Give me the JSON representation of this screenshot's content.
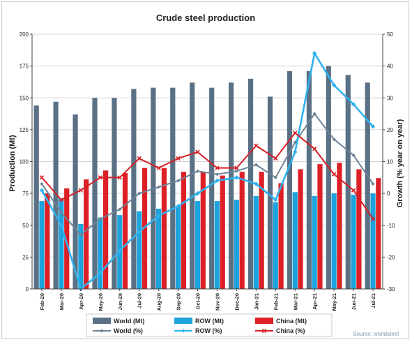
{
  "chart_data": {
    "type": "bar",
    "title": "Crude steel production",
    "source": "Source: worldsteel",
    "ylabel": "Production (Mt)",
    "y2label": "Growth (% year on year)",
    "ylim": [
      0,
      200
    ],
    "y2lim": [
      -30,
      50
    ],
    "yticks": [
      "0",
      "25",
      "50",
      "75",
      "100",
      "125",
      "150",
      "175",
      "200"
    ],
    "y2ticks": [
      "-30",
      "-20",
      "-10",
      "0",
      "10",
      "20",
      "30",
      "40",
      "50"
    ],
    "grid": true,
    "legend_position": "bottom",
    "categories": [
      "Feb-20",
      "Mar-20",
      "Apr-20",
      "May-20",
      "Jun-20",
      "Jul-20",
      "Aug-20",
      "Sep-20",
      "Oct-20",
      "Nov-20",
      "Dec-20",
      "Jan-21",
      "Feb-21",
      "Mar-21",
      "Apr-21",
      "May-21",
      "Jun-21",
      "Jul-21"
    ],
    "bar_series": [
      {
        "name": "World (Mt)",
        "color": "#5a7185",
        "values": [
          144,
          147,
          137,
          150,
          150,
          157,
          158,
          158,
          162,
          158,
          162,
          165,
          151,
          171,
          171,
          175,
          168,
          162
        ]
      },
      {
        "name": "ROW (Mt)",
        "color": "#1da3dd",
        "values": [
          69,
          71,
          51,
          56,
          58,
          61,
          63,
          65,
          69,
          69,
          70,
          73,
          68,
          76,
          73,
          75,
          74,
          75
        ]
      },
      {
        "name": "China (Mt)",
        "color": "#dd1f26",
        "values": [
          75,
          79,
          86,
          93,
          91,
          95,
          95,
          92,
          92,
          89,
          92,
          92,
          83,
          94,
          98,
          99,
          94,
          87
        ]
      }
    ],
    "line_series": [
      {
        "name": "World (%)",
        "color": "#6d8396",
        "axis": "right",
        "values": [
          3,
          -6,
          -13,
          -8,
          -5,
          0,
          2,
          4,
          7,
          6,
          7,
          9,
          5,
          16,
          25,
          17,
          12,
          3
        ]
      },
      {
        "name": "ROW (%)",
        "color": "#2fb2ee",
        "axis": "right",
        "values": [
          1,
          -10,
          -30,
          -25,
          -18,
          -12,
          -7,
          -4,
          0,
          4,
          5,
          3,
          -2,
          13,
          44,
          34,
          28,
          21
        ]
      },
      {
        "name": "China (%)",
        "color": "#d61f26",
        "axis": "right",
        "values": [
          5,
          -2,
          1,
          5,
          5,
          11,
          8,
          11,
          13,
          8,
          8,
          15,
          11,
          19,
          14,
          6,
          1,
          -8
        ]
      }
    ]
  }
}
